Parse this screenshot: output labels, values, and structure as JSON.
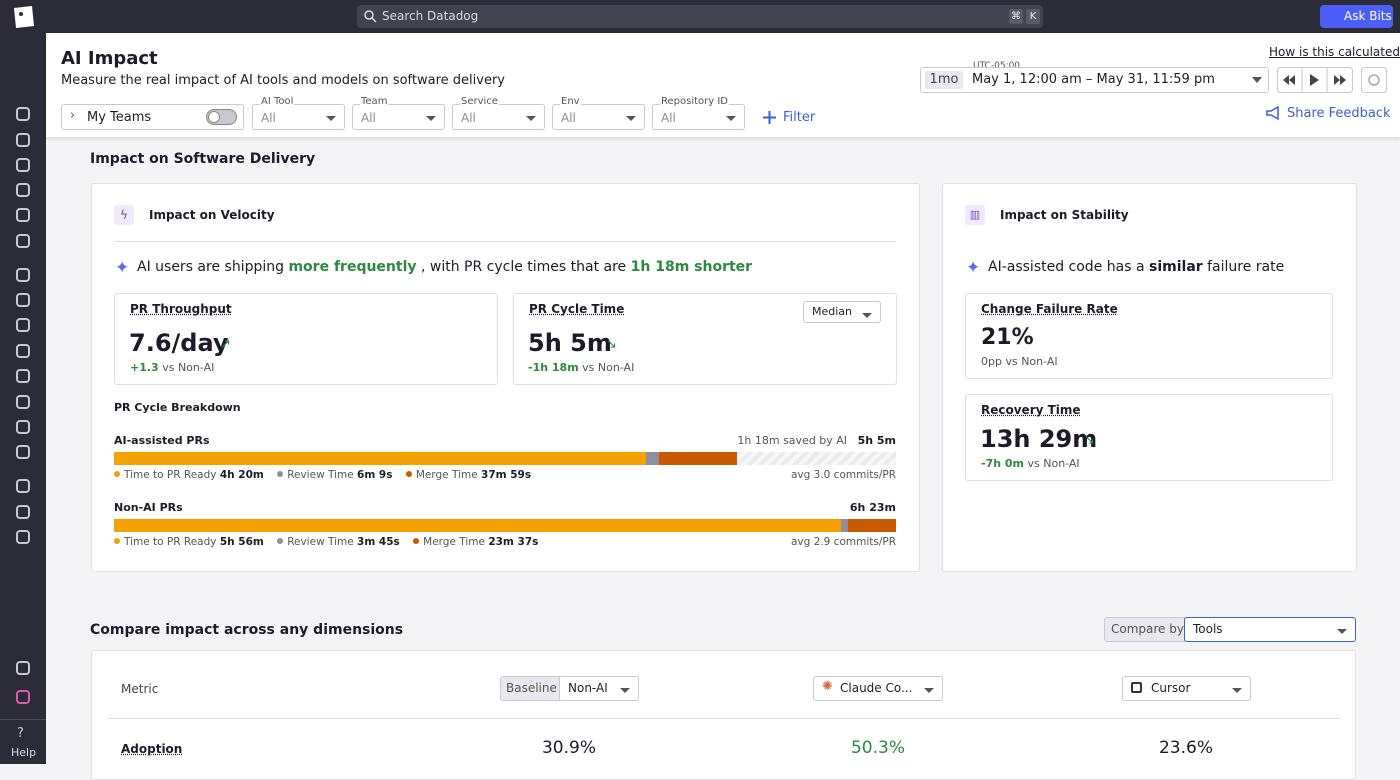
{
  "topbar": {
    "search": "Search Datadog",
    "shortcut": [
      "⌘",
      "K"
    ],
    "ask": "Ask Bits"
  },
  "sidebar": {
    "help": "Help"
  },
  "header": {
    "title": "AI Impact",
    "subtitle": "Measure the real impact of AI tools and models on software delivery",
    "how": "How is this calculated?",
    "timezone": "UTC-05:00",
    "range_short": "1mo",
    "range": "May 1, 12:00 am – May 31, 11:59 pm",
    "share": "Share Feedback"
  },
  "filters": {
    "my_teams": "My Teams",
    "dropdowns": [
      {
        "label": "AI Tool",
        "value": "All"
      },
      {
        "label": "Team",
        "value": "All"
      },
      {
        "label": "Service",
        "value": "All"
      },
      {
        "label": "Env",
        "value": "All"
      },
      {
        "label": "Repository ID",
        "value": "All"
      }
    ],
    "filter": "Filter"
  },
  "delivery": {
    "title": "Impact on Software Delivery",
    "velocity": {
      "title": "Impact on Velocity",
      "headline": [
        "AI users are shipping",
        "more frequently",
        ", with PR cycle times that are",
        "1h 18m shorter"
      ],
      "throughput": {
        "title": "PR Throughput",
        "value": "7.6/day",
        "delta": "+1.3",
        "compare": "vs Non-AI"
      },
      "cycle": {
        "title": "PR Cycle Time",
        "value": "5h 5m",
        "delta": "-1h 18m",
        "compare": "vs Non-AI",
        "select": "Median"
      },
      "breakdown": {
        "title": "PR Cycle Breakdown",
        "rows": [
          {
            "name": "AI-assisted PRs",
            "saved": "1h 18m saved by AI",
            "total": "5h 5m",
            "legend": [
              {
                "name": "Time to PR Ready",
                "value": "4h 20m"
              },
              {
                "name": "Review Time",
                "value": "6m 9s"
              },
              {
                "name": "Merge Time",
                "value": "37m 59s"
              }
            ],
            "avg": "avg 3.0 commits/PR"
          },
          {
            "name": "Non-AI PRs",
            "total": "6h 23m",
            "legend": [
              {
                "name": "Time to PR Ready",
                "value": "5h 56m"
              },
              {
                "name": "Review Time",
                "value": "3m 45s"
              },
              {
                "name": "Merge Time",
                "value": "23m 37s"
              }
            ],
            "avg": "avg 2.9 commits/PR"
          }
        ]
      }
    },
    "stability": {
      "title": "Impact on Stability",
      "headline": [
        "AI-assisted code has a",
        "similar",
        "failure rate"
      ],
      "failure": {
        "title": "Change Failure Rate",
        "value": "21%",
        "delta": "0pp",
        "compare": "vs Non-AI"
      },
      "recovery": {
        "title": "Recovery Time",
        "value": "13h 29m",
        "delta": "-7h 0m",
        "compare": "vs Non-AI"
      }
    }
  },
  "compare": {
    "title": "Compare impact across any dimensions",
    "compare_by": "Compare by",
    "compare_value": "Tools",
    "metric": "Metric",
    "baseline": "Baseline",
    "columns": [
      "Non-AI",
      "Claude Co...",
      "Cursor"
    ],
    "rows": [
      {
        "name": "Adoption",
        "values": [
          "30.9%",
          "50.3%",
          "23.6%"
        ]
      }
    ]
  }
}
